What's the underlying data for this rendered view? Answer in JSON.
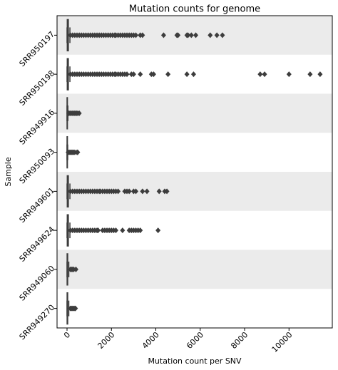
{
  "chart_data": {
    "type": "box",
    "title": "Mutation counts for genome",
    "xlabel": "Mutation count per SNV",
    "ylabel": "Sample",
    "categories": [
      "SRR950197",
      "SRR950198",
      "SRR949916",
      "SRR950093",
      "SRR949601",
      "SRR949624",
      "SRR949060",
      "SRR949270"
    ],
    "color": "#3d3d3d",
    "band_color": "#ebebeb",
    "xlim": [
      -450,
      11950
    ],
    "xticks": [
      0,
      2000,
      4000,
      6000,
      8000,
      10000
    ],
    "boxes": [
      {
        "whislo": 0,
        "q1": 10,
        "med": 30,
        "q3": 60,
        "whishi": 130,
        "fliers": [
          150,
          250,
          350,
          450,
          550,
          650,
          750,
          850,
          950,
          1050,
          1150,
          1250,
          1350,
          1450,
          1550,
          1650,
          1750,
          1850,
          1950,
          2050,
          2150,
          2200,
          2300,
          2400,
          2500,
          2600,
          2700,
          2800,
          2900,
          3000,
          3100,
          3300,
          3400,
          4350,
          4950,
          5000,
          5400,
          5450,
          5600,
          5800,
          6450,
          6750,
          7000
        ]
      },
      {
        "whislo": 0,
        "q1": 10,
        "med": 30,
        "q3": 60,
        "whishi": 130,
        "fliers": [
          150,
          250,
          350,
          450,
          550,
          650,
          750,
          850,
          950,
          1050,
          1150,
          1250,
          1350,
          1450,
          1550,
          1650,
          1750,
          1850,
          1950,
          2050,
          2150,
          2200,
          2300,
          2400,
          2500,
          2600,
          2700,
          2900,
          3000,
          3300,
          3800,
          3900,
          4550,
          5400,
          5700,
          8700,
          8900,
          10000,
          10950,
          11400
        ]
      },
      {
        "whislo": 0,
        "q1": 2,
        "med": 5,
        "q3": 15,
        "whishi": 40,
        "fliers": [
          80,
          130,
          180,
          230,
          280,
          330,
          380,
          430,
          480,
          550
        ]
      },
      {
        "whislo": 0,
        "q1": 2,
        "med": 5,
        "q3": 15,
        "whishi": 30,
        "fliers": [
          50,
          100,
          150,
          200,
          250,
          300,
          350,
          450,
          480
        ]
      },
      {
        "whislo": 0,
        "q1": 10,
        "med": 30,
        "q3": 60,
        "whishi": 130,
        "fliers": [
          150,
          250,
          350,
          450,
          550,
          650,
          750,
          850,
          950,
          1050,
          1150,
          1250,
          1350,
          1450,
          1500,
          1600,
          1700,
          1800,
          1900,
          2000,
          2100,
          2200,
          2300,
          2600,
          2700,
          2800,
          3000,
          3100,
          3400,
          3600,
          4150,
          4400,
          4500
        ]
      },
      {
        "whislo": 0,
        "q1": 10,
        "med": 30,
        "q3": 60,
        "whishi": 130,
        "fliers": [
          150,
          250,
          350,
          450,
          550,
          650,
          750,
          850,
          950,
          1050,
          1150,
          1250,
          1350,
          1400,
          1600,
          1700,
          1800,
          1900,
          2000,
          2100,
          2200,
          2500,
          2800,
          2900,
          3000,
          3100,
          3200,
          3300,
          4100
        ]
      },
      {
        "whislo": 0,
        "q1": 3,
        "med": 10,
        "q3": 30,
        "whishi": 80,
        "fliers": [
          150,
          200,
          250,
          300,
          400
        ]
      },
      {
        "whislo": 0,
        "q1": 3,
        "med": 10,
        "q3": 30,
        "whishi": 80,
        "fliers": [
          150,
          200,
          250,
          300,
          350,
          380
        ]
      }
    ]
  }
}
